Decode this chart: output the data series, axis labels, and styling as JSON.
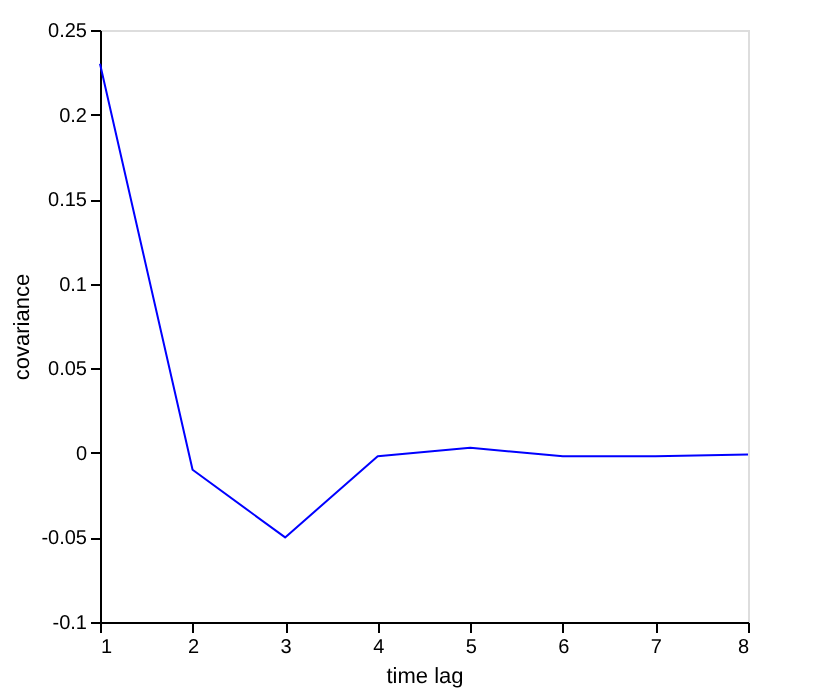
{
  "chart_data": {
    "type": "line",
    "xlabel": "time lag",
    "ylabel": "covariance",
    "x": [
      1,
      2,
      3,
      4,
      5,
      6,
      7,
      8
    ],
    "series": [
      {
        "color": "#0000ff",
        "values": [
          0.23,
          -0.01,
          -0.05,
          -0.002,
          0.003,
          -0.002,
          -0.002,
          -0.001
        ]
      }
    ],
    "xlim": [
      1,
      8
    ],
    "xticks": [
      1,
      2,
      3,
      4,
      5,
      6,
      7,
      8
    ],
    "ylim": [
      -0.1,
      0.25
    ],
    "yticks": [
      -0.1,
      -0.05,
      0,
      0.05,
      0.1,
      0.15,
      0.2,
      0.25
    ],
    "grid": false,
    "legend": false,
    "marker": "none",
    "line_style": "solid"
  }
}
